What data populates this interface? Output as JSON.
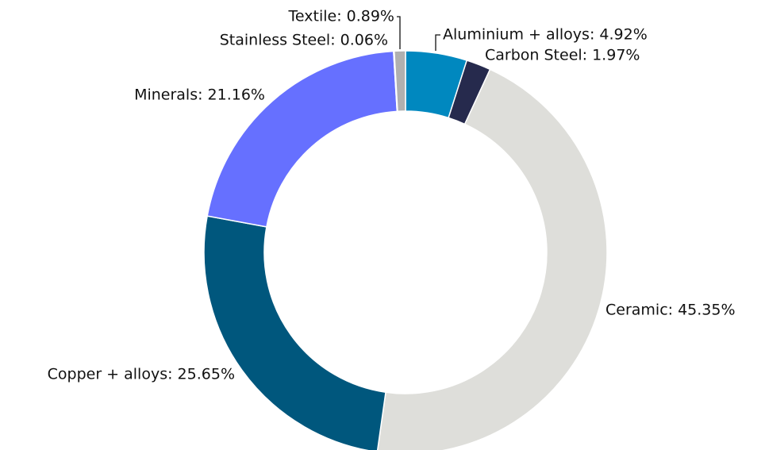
{
  "chart_data": {
    "type": "donut",
    "categories": [
      "Aluminium + alloys: 4.92%",
      "Carbon Steel: 1.97%",
      "Ceramic: 45.35%",
      "Copper + alloys: 25.65%",
      "Minerals: 21.16%",
      "Stainless Steel: 0.06%",
      "Textile: 0.89%"
    ],
    "values": [
      4.92,
      1.97,
      45.35,
      25.65,
      21.16,
      0.06,
      0.89
    ],
    "colors": [
      "#0088bf",
      "#262a4d",
      "#dededa",
      "#00577d",
      "#6670ff",
      "#a3a9ff",
      "#b0b0b0"
    ]
  }
}
